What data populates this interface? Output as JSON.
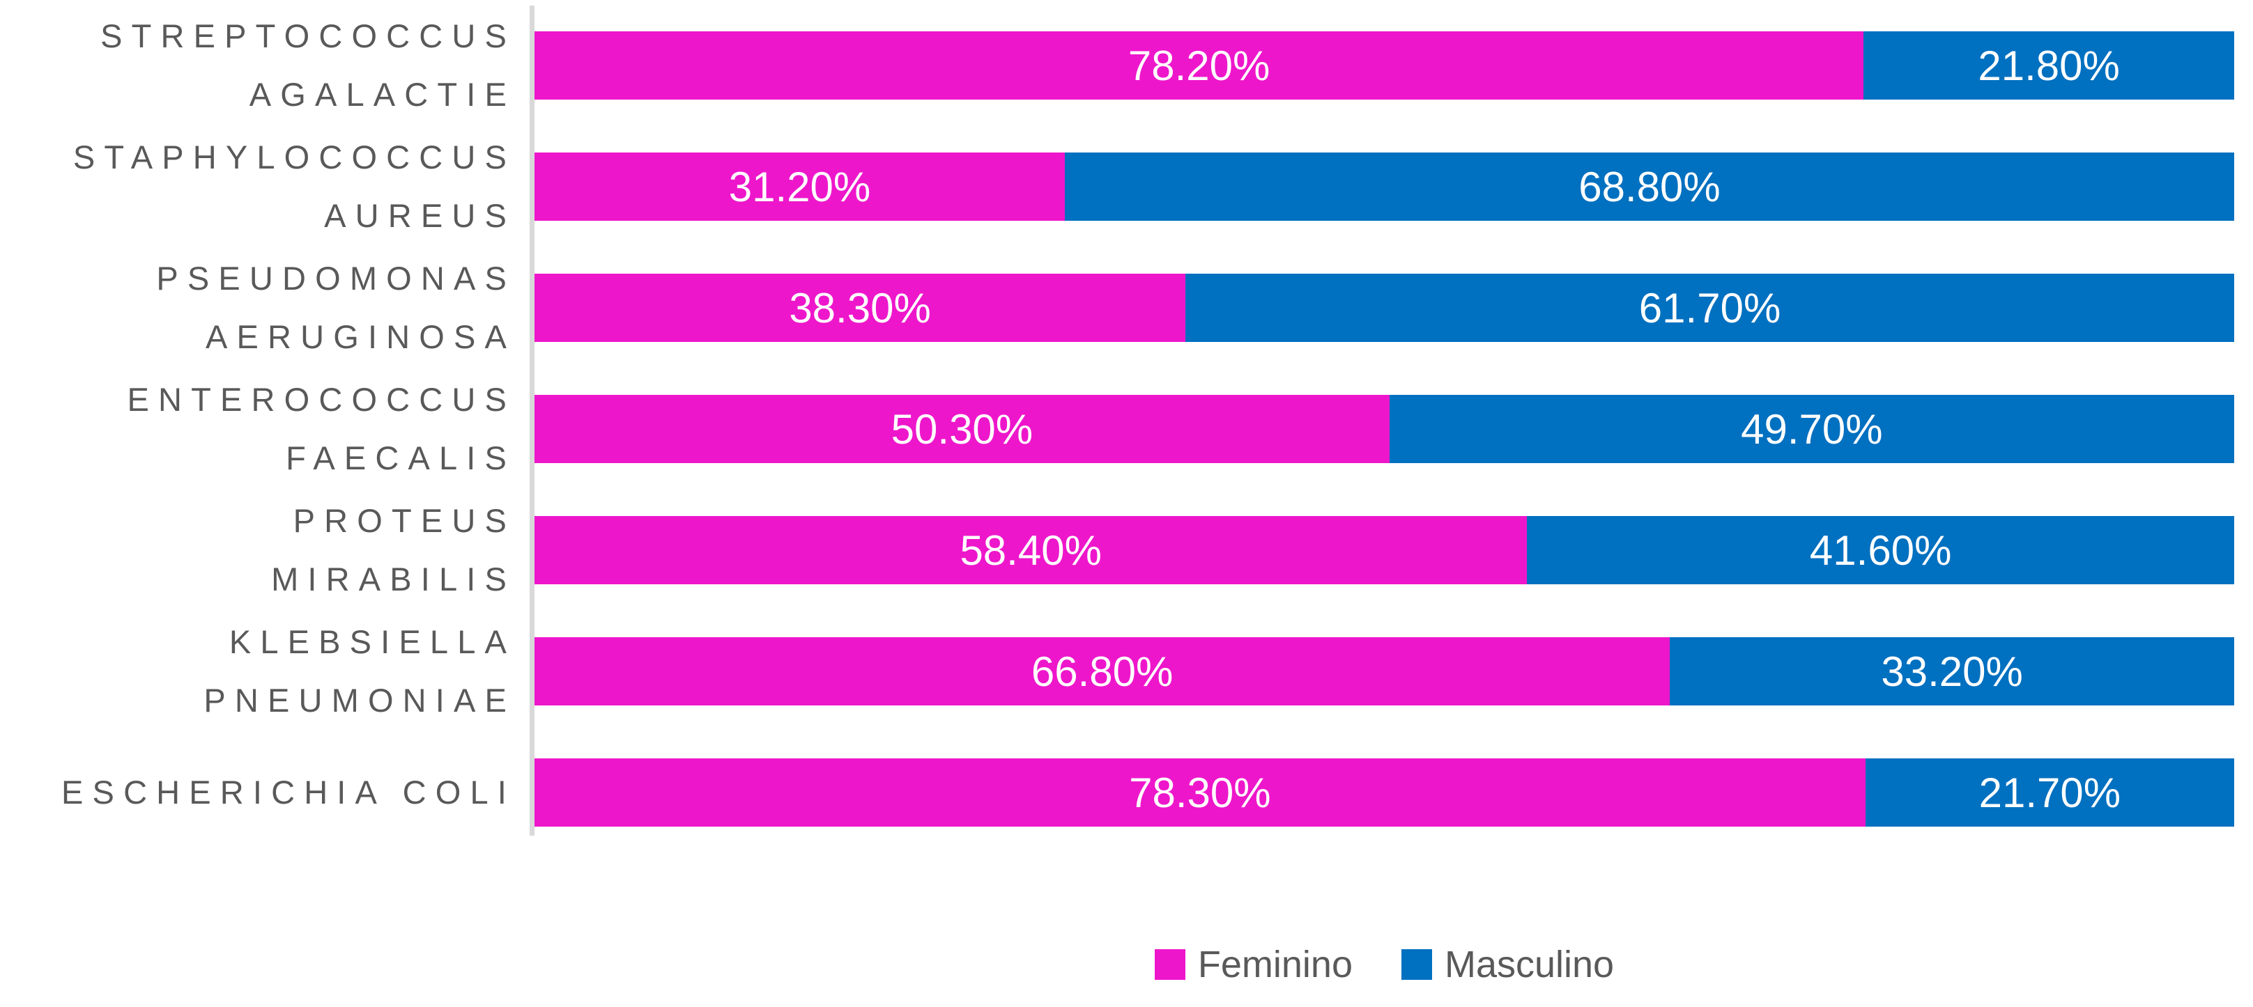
{
  "chart_data": {
    "type": "bar",
    "variant": "100%-stacked-horizontal",
    "title": "",
    "xlabel": "",
    "ylabel": "",
    "xlim": [
      0,
      100
    ],
    "grid": false,
    "legend_position": "bottom-center",
    "categories": [
      "STREPTOCOCCUS AGALACTIE",
      "STAPHYLOCOCCUS AUREUS",
      "PSEUDOMONAS AERUGINOSA",
      "ENTEROCOCCUS FAECALIS",
      "PROTEUS MIRABILIS",
      "KLEBSIELLA PNEUMONIAE",
      "ESCHERICHIA COLI"
    ],
    "categories_lines": [
      [
        "STREPTOCOCCUS",
        "AGALACTIE"
      ],
      [
        "STAPHYLOCOCCUS",
        "AUREUS"
      ],
      [
        "PSEUDOMONAS",
        "AERUGINOSA"
      ],
      [
        "ENTEROCOCCUS",
        "FAECALIS"
      ],
      [
        "PROTEUS",
        "MIRABILIS"
      ],
      [
        "KLEBSIELLA",
        "PNEUMONIAE"
      ],
      [
        "ESCHERICHIA COLI"
      ]
    ],
    "series": [
      {
        "name": "Feminino",
        "color": "#EE16CB",
        "values": [
          78.2,
          31.2,
          38.3,
          50.3,
          58.4,
          66.8,
          78.3
        ],
        "labels": [
          "78.20%",
          "31.20%",
          "38.30%",
          "50.30%",
          "58.40%",
          "66.80%",
          "78.30%"
        ]
      },
      {
        "name": "Masculino",
        "color": "#0070C0",
        "values": [
          21.8,
          68.8,
          61.7,
          49.7,
          41.6,
          33.2,
          21.7
        ],
        "labels": [
          "21.80%",
          "68.80%",
          "61.70%",
          "49.70%",
          "41.60%",
          "33.20%",
          "21.70%"
        ]
      }
    ],
    "colors": {
      "background": "#FFFFFF",
      "axis_line": "#D9D9D9",
      "category_label": "#595959",
      "value_label": "#FFFFFF",
      "legend_label": "#595959"
    }
  }
}
